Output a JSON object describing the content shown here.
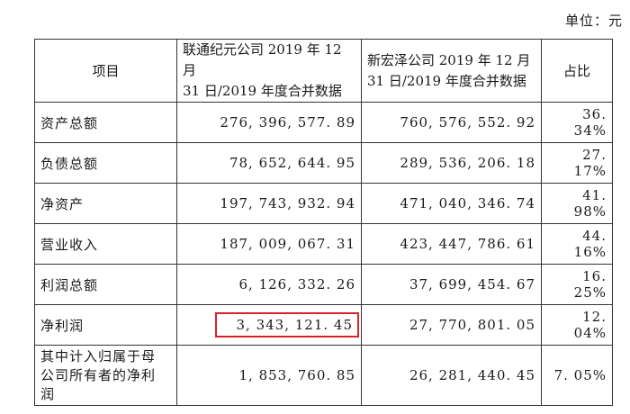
{
  "unit_label": "单位：元",
  "table": {
    "headers": {
      "item": "项目",
      "company1_line1": "联通纪元公司 2019 年 12 月",
      "company1_line2": "31 日/2019 年度合并数据",
      "company2_line1": "新宏泽公司 2019 年 12 月",
      "company2_line2": "31 日/2019 年度合并数据",
      "ratio": "占比"
    },
    "rows": [
      {
        "name": "资产总额",
        "c1": "276, 396, 577. 89",
        "c2": "760, 576, 552. 92",
        "ratio": "36. 34%"
      },
      {
        "name": "负债总额",
        "c1": "78, 652, 644. 95",
        "c2": "289, 536, 206. 18",
        "ratio": "27. 17%"
      },
      {
        "name": "净资产",
        "c1": "197, 743, 932. 94",
        "c2": "471, 040, 346. 74",
        "ratio": "41. 98%"
      },
      {
        "name": "营业收入",
        "c1": "187, 009, 067. 31",
        "c2": "423, 447, 786. 61",
        "ratio": "44. 16%"
      },
      {
        "name": "利润总额",
        "c1": "6, 126, 332. 26",
        "c2": "37, 699, 454. 67",
        "ratio": "16. 25%"
      },
      {
        "name": "净利润",
        "c1": "3, 343, 121. 45",
        "c2": "27, 770, 801. 05",
        "ratio": "12. 04%"
      },
      {
        "name_lines": [
          "其中计入归属于母",
          "公司所有者的净利",
          "润"
        ],
        "c1": "1, 853, 760. 85",
        "c2": "26, 281, 440. 45",
        "ratio": "7. 05%"
      }
    ]
  },
  "highlight_color": "#d9232b"
}
